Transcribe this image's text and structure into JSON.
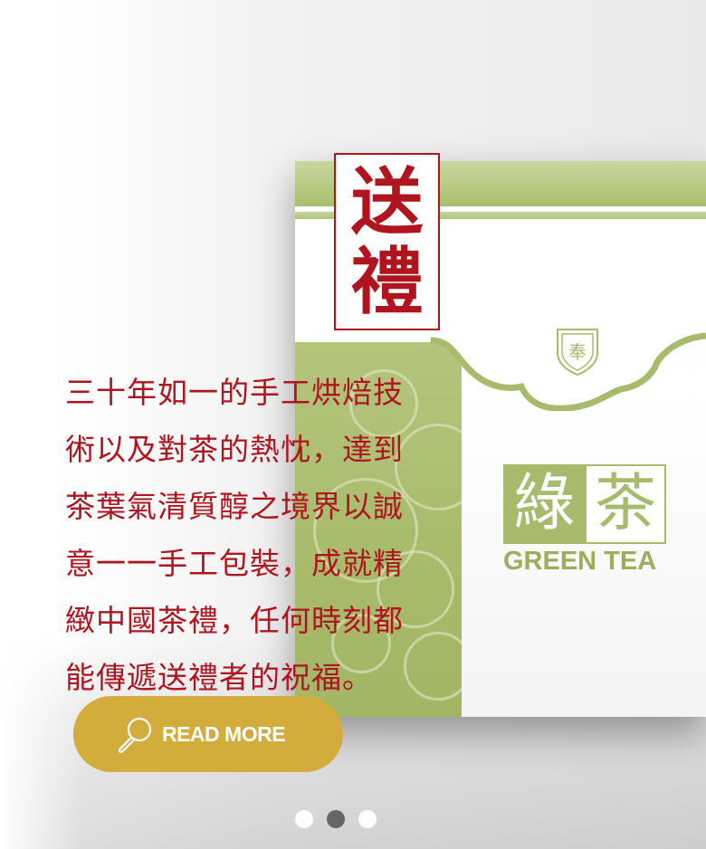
{
  "hero": {
    "gift_label_line1": "送",
    "gift_label_line2": "禮",
    "emblem_char": "奉",
    "description_lines": [
      "三十年如一的手工烘焙技",
      "術以及對茶的熱忱，達到",
      "茶葉氣清質醇之境界以誠",
      "意一一手工包裝，成就精",
      "緻中國茶禮，任何時刻都",
      "能傳遞送禮者的祝福。"
    ],
    "product_mark_char1": "綠",
    "product_mark_char2": "茶",
    "product_mark_en": "GREEN TEA"
  },
  "cta": {
    "icon": "magnifier-icon",
    "label": "READ MORE"
  },
  "carousel": {
    "dots": 3,
    "active_index": 1
  },
  "colors": {
    "accent_red": "#b0141e",
    "tea_green": "#a8bb6c",
    "button_gold": "#d3ad3c",
    "dot_active": "#666666"
  }
}
